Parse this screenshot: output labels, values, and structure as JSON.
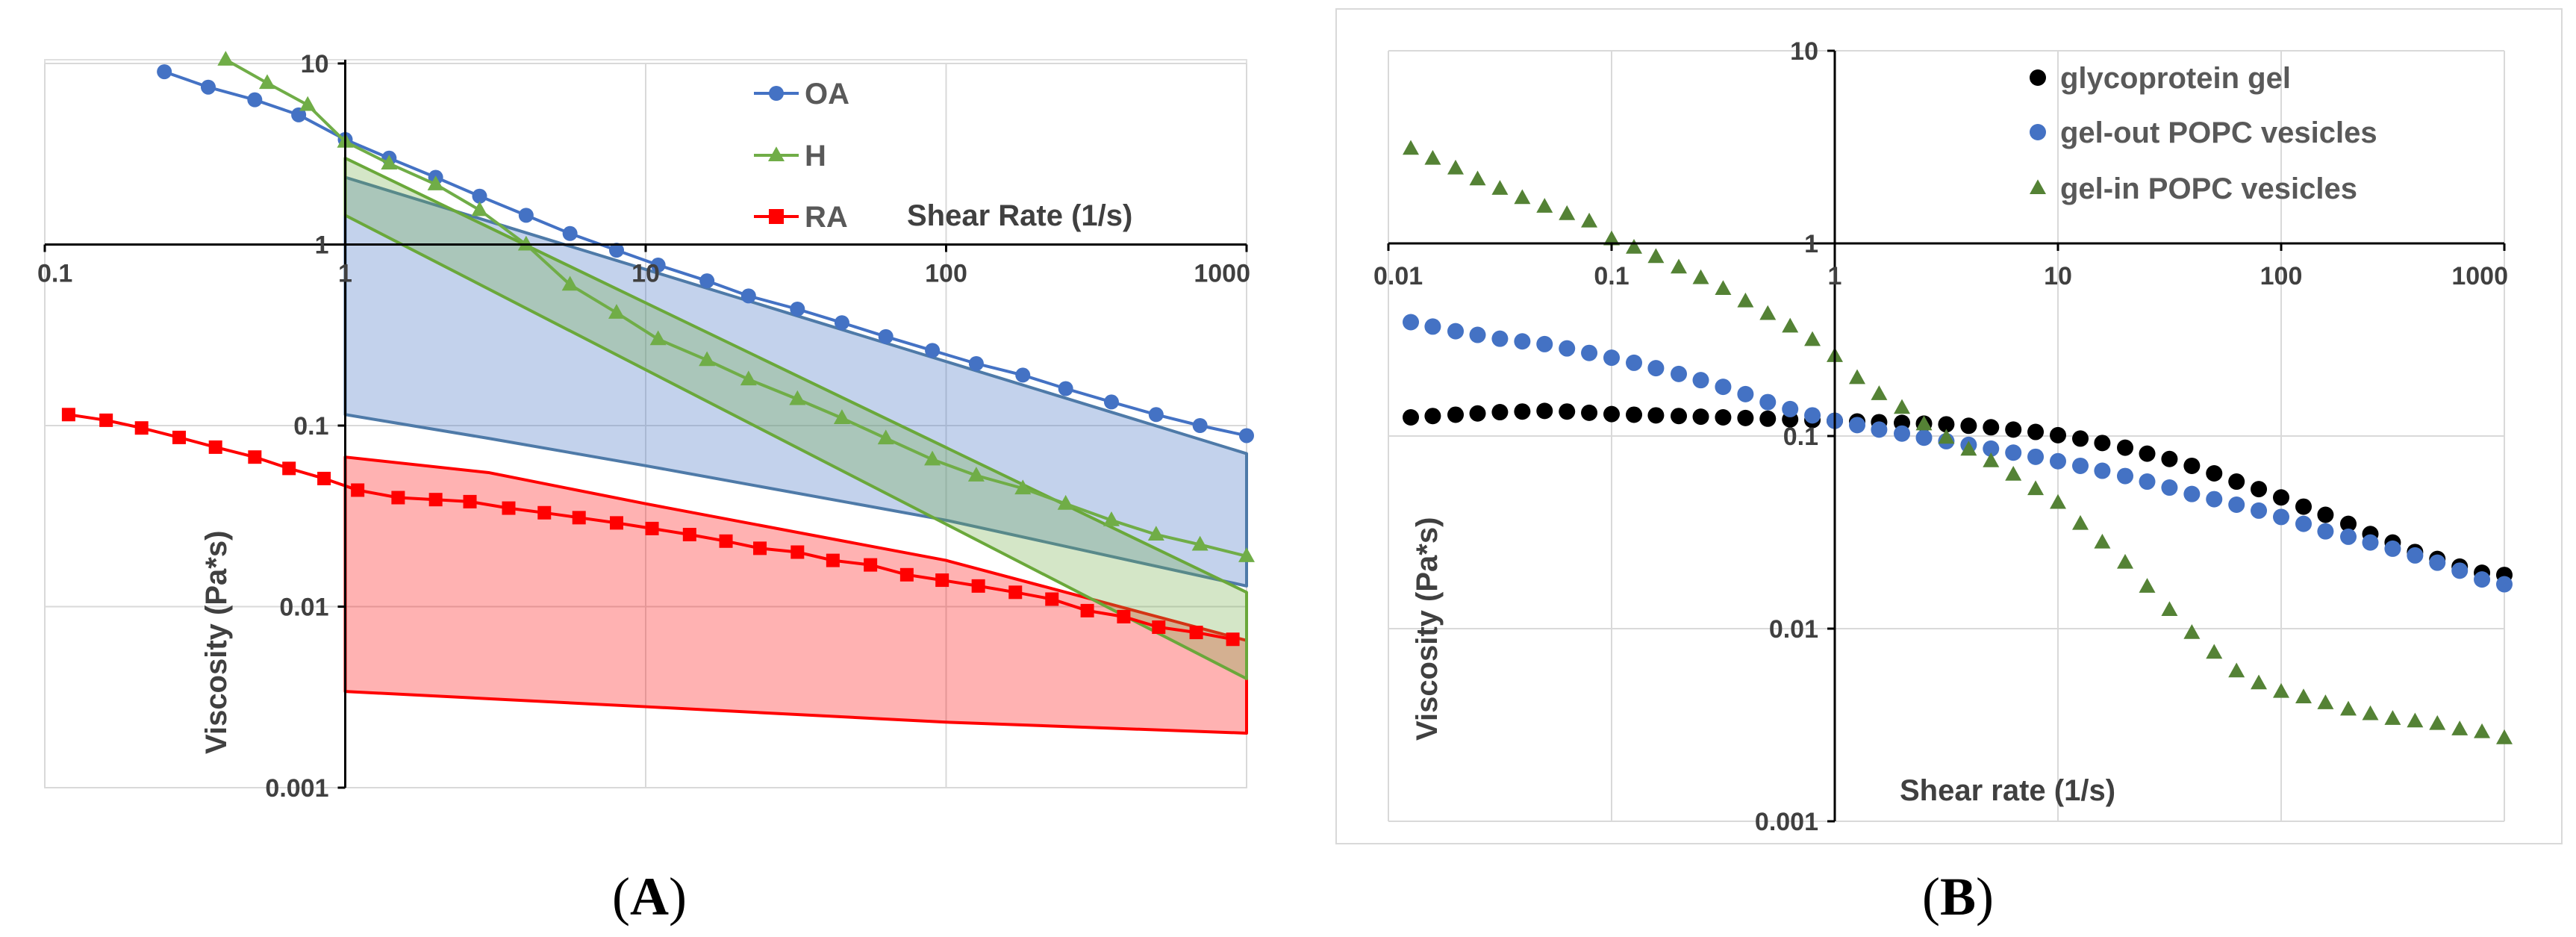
{
  "chart_data": [
    {
      "panel": "A",
      "type": "line",
      "scale": "log-log",
      "xlabel": "Shear Rate (1/s)",
      "ylabel": "Viscosity (Pa*s)",
      "xlim": [
        0.1,
        1000
      ],
      "ylim": [
        0.001,
        10
      ],
      "x_ticks": [
        "0.1",
        "1",
        "10",
        "100",
        "1000"
      ],
      "y_ticks": [
        "0.001",
        "0.01",
        "0.1",
        "1",
        "10"
      ],
      "legend": [
        "OA",
        "H",
        "RA"
      ],
      "colors": {
        "OA": "#4472c4",
        "H": "#70ad47",
        "RA": "#ff0000",
        "OA_band": "#4e7aa8",
        "H_band": "#6aa83a",
        "RA_band": "#ff0000"
      },
      "series": [
        {
          "name": "OA",
          "marker": "circle",
          "x": [
            0.25,
            0.35,
            0.5,
            0.7,
            1,
            1.4,
            2,
            2.8,
            4,
            5.6,
            8,
            11,
            16,
            22,
            32,
            45,
            63,
            90,
            126,
            180,
            250,
            355,
            500,
            700,
            1000
          ],
          "y": [
            9.0,
            7.4,
            6.3,
            5.2,
            3.8,
            3.0,
            2.35,
            1.85,
            1.45,
            1.15,
            0.93,
            0.77,
            0.63,
            0.52,
            0.44,
            0.37,
            0.31,
            0.26,
            0.22,
            0.19,
            0.16,
            0.135,
            0.115,
            0.1,
            0.088
          ]
        },
        {
          "name": "H",
          "marker": "triangle",
          "x": [
            0.4,
            0.55,
            0.75,
            1,
            1.4,
            2,
            2.8,
            4,
            5.6,
            8,
            11,
            16,
            22,
            32,
            45,
            63,
            90,
            126,
            180,
            250,
            355,
            500,
            700,
            1000
          ],
          "y": [
            10.5,
            7.8,
            5.9,
            3.7,
            2.8,
            2.15,
            1.55,
            1.0,
            0.6,
            0.42,
            0.3,
            0.23,
            0.18,
            0.14,
            0.11,
            0.085,
            0.065,
            0.053,
            0.045,
            0.037,
            0.03,
            0.025,
            0.022,
            0.019
          ]
        },
        {
          "name": "RA",
          "marker": "square",
          "x": [
            0.12,
            0.16,
            0.21,
            0.28,
            0.37,
            0.5,
            0.65,
            0.85,
            1.1,
            1.5,
            2,
            2.6,
            3.5,
            4.6,
            6,
            8,
            10.5,
            14,
            18.5,
            24,
            32,
            42,
            56,
            74,
            97,
            128,
            170,
            225,
            295,
            390,
            510,
            680,
            900
          ],
          "y": [
            0.115,
            0.107,
            0.097,
            0.086,
            0.076,
            0.067,
            0.058,
            0.051,
            0.044,
            0.04,
            0.039,
            0.038,
            0.035,
            0.033,
            0.031,
            0.029,
            0.027,
            0.025,
            0.023,
            0.021,
            0.02,
            0.018,
            0.017,
            0.015,
            0.014,
            0.013,
            0.012,
            0.011,
            0.0095,
            0.0088,
            0.0077,
            0.0072,
            0.0066
          ]
        }
      ],
      "bands": [
        {
          "name": "OA",
          "x_upper": [
            1,
            1000
          ],
          "y_upper": [
            2.35,
            0.07
          ],
          "x_lower": [
            1,
            3,
            10,
            100,
            1000
          ],
          "y_lower": [
            0.115,
            0.085,
            0.06,
            0.03,
            0.013
          ]
        },
        {
          "name": "H",
          "x_upper": [
            1,
            1000
          ],
          "y_upper": [
            3.0,
            0.012
          ],
          "x_lower": [
            1,
            1000
          ],
          "y_lower": [
            1.45,
            0.004
          ]
        },
        {
          "name": "RA",
          "x_upper": [
            1,
            3,
            10,
            100,
            1000
          ],
          "y_upper": [
            0.067,
            0.055,
            0.037,
            0.018,
            0.0065
          ],
          "x_lower": [
            1,
            10,
            100,
            1000
          ],
          "y_lower": [
            0.0034,
            0.0028,
            0.0023,
            0.002
          ]
        }
      ]
    },
    {
      "panel": "B",
      "type": "scatter",
      "scale": "log-log",
      "xlabel": "Shear rate (1/s)",
      "ylabel": "Viscosity (Pa*s)",
      "xlim": [
        0.01,
        1000
      ],
      "ylim": [
        0.001,
        10
      ],
      "x_ticks": [
        "0.01",
        "0.1",
        "1",
        "10",
        "100",
        "1000"
      ],
      "y_ticks": [
        "0.001",
        "0.01",
        "0.1",
        "1",
        "10"
      ],
      "legend": [
        "glycoprotein gel",
        "gel-out POPC vesicles",
        "gel-in POPC vesicles"
      ],
      "colors": {
        "glycoprotein gel": "#000000",
        "gel-out POPC vesicles": "#4472c4",
        "gel-in POPC vesicles": "#548235"
      },
      "series": [
        {
          "name": "glycoprotein gel",
          "marker": "circle",
          "x": [
            0.0126,
            0.0158,
            0.02,
            0.0251,
            0.0316,
            0.0398,
            0.0501,
            0.0631,
            0.0794,
            0.1,
            0.126,
            0.158,
            0.2,
            0.251,
            0.316,
            0.398,
            0.501,
            0.631,
            0.794,
            1,
            1.26,
            1.58,
            2,
            2.51,
            3.16,
            3.98,
            5.01,
            6.31,
            7.94,
            10,
            12.6,
            15.8,
            20,
            25.1,
            31.6,
            39.8,
            50.1,
            63.1,
            79.4,
            100,
            126,
            158,
            200,
            251,
            316,
            398,
            501,
            631,
            794,
            1000
          ],
          "y": [
            0.125,
            0.127,
            0.129,
            0.131,
            0.133,
            0.134,
            0.135,
            0.134,
            0.132,
            0.13,
            0.129,
            0.128,
            0.127,
            0.126,
            0.125,
            0.124,
            0.123,
            0.122,
            0.121,
            0.12,
            0.119,
            0.118,
            0.117,
            0.116,
            0.115,
            0.113,
            0.111,
            0.108,
            0.105,
            0.101,
            0.097,
            0.092,
            0.087,
            0.081,
            0.076,
            0.07,
            0.064,
            0.058,
            0.053,
            0.048,
            0.043,
            0.039,
            0.035,
            0.031,
            0.028,
            0.025,
            0.023,
            0.021,
            0.0195,
            0.019
          ]
        },
        {
          "name": "gel-out POPC vesicles",
          "marker": "circle",
          "x": [
            0.0126,
            0.0158,
            0.02,
            0.0251,
            0.0316,
            0.0398,
            0.0501,
            0.0631,
            0.0794,
            0.1,
            0.126,
            0.158,
            0.2,
            0.251,
            0.316,
            0.398,
            0.501,
            0.631,
            0.794,
            1,
            1.26,
            1.58,
            2,
            2.51,
            3.16,
            3.98,
            5.01,
            6.31,
            7.94,
            10,
            12.6,
            15.8,
            20,
            25.1,
            31.6,
            39.8,
            50.1,
            63.1,
            79.4,
            100,
            126,
            158,
            200,
            251,
            316,
            398,
            501,
            631,
            794,
            1000
          ],
          "y": [
            0.39,
            0.37,
            0.35,
            0.335,
            0.32,
            0.31,
            0.3,
            0.285,
            0.27,
            0.255,
            0.24,
            0.225,
            0.21,
            0.195,
            0.18,
            0.165,
            0.15,
            0.138,
            0.128,
            0.12,
            0.114,
            0.108,
            0.103,
            0.098,
            0.094,
            0.09,
            0.086,
            0.082,
            0.078,
            0.074,
            0.07,
            0.066,
            0.062,
            0.058,
            0.054,
            0.05,
            0.047,
            0.044,
            0.041,
            0.038,
            0.035,
            0.032,
            0.03,
            0.028,
            0.026,
            0.024,
            0.022,
            0.02,
            0.018,
            0.017
          ]
        },
        {
          "name": "gel-in POPC vesicles",
          "marker": "triangle",
          "x": [
            0.0126,
            0.0158,
            0.02,
            0.0251,
            0.0316,
            0.0398,
            0.0501,
            0.0631,
            0.0794,
            0.1,
            0.126,
            0.158,
            0.2,
            0.251,
            0.316,
            0.398,
            0.501,
            0.631,
            0.794,
            1,
            1.26,
            1.58,
            2,
            2.51,
            3.16,
            3.98,
            5.01,
            6.31,
            7.94,
            10,
            12.6,
            15.8,
            20,
            25.1,
            31.6,
            39.8,
            50.1,
            63.1,
            79.4,
            100,
            126,
            158,
            200,
            251,
            316,
            398,
            501,
            631,
            794,
            1000
          ],
          "y": [
            3.1,
            2.75,
            2.45,
            2.15,
            1.92,
            1.72,
            1.55,
            1.42,
            1.3,
            1.05,
            0.95,
            0.85,
            0.75,
            0.66,
            0.58,
            0.5,
            0.43,
            0.37,
            0.315,
            0.26,
            0.2,
            0.165,
            0.14,
            0.115,
            0.098,
            0.085,
            0.074,
            0.063,
            0.053,
            0.045,
            0.035,
            0.028,
            0.022,
            0.0165,
            0.0125,
            0.0095,
            0.0075,
            0.006,
            0.0052,
            0.0047,
            0.0044,
            0.0041,
            0.0038,
            0.0036,
            0.0034,
            0.0033,
            0.0032,
            0.003,
            0.0029,
            0.0027
          ]
        }
      ]
    }
  ],
  "panel_labels": {
    "a": {
      "open": "(",
      "letter": "A",
      "close": ")"
    },
    "b": {
      "open": "(",
      "letter": "B",
      "close": ")"
    }
  }
}
